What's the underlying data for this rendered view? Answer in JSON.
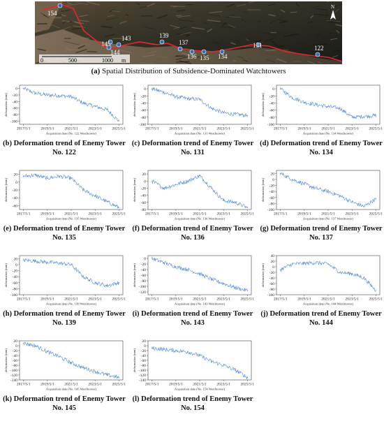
{
  "figure": {
    "main_caption_label": "(a)",
    "main_caption_text": "Spatial Distribution of Subsidence-Dominated Watchtowers"
  },
  "map": {
    "north_label": "N",
    "scale_labels": [
      "0",
      "500",
      "1000",
      "m"
    ],
    "tower_labels": [
      {
        "id": "154",
        "label": "154"
      },
      {
        "id": "145",
        "label": "145"
      },
      {
        "id": "144",
        "label": "144"
      },
      {
        "id": "143",
        "label": "143"
      },
      {
        "id": "139",
        "label": "139"
      },
      {
        "id": "137",
        "label": "137"
      },
      {
        "id": "136",
        "label": "136"
      },
      {
        "id": "135",
        "label": "135"
      },
      {
        "id": "134",
        "label": "134"
      },
      {
        "id": "131",
        "label": "131"
      },
      {
        "id": "122",
        "label": "122"
      }
    ],
    "colors": {
      "boundary": "#e8262a",
      "marker": "#2f6fbf",
      "label": "#ffffff"
    }
  },
  "chart_data": [
    {
      "type": "line",
      "panel": "b",
      "ylabel": "deformation (mm)",
      "xlabel": "Acquisition date (No. 122 Watchtower)",
      "x_ticks": [
        "2017/5/1",
        "2019/5/1",
        "2021/5/1",
        "2023/5/1",
        "2025/5/1"
      ],
      "y_ticks": [
        0,
        -20,
        -40,
        -60,
        -80,
        -100
      ],
      "ylim": [
        -110,
        10
      ],
      "series": [
        {
          "x": [
            "2017/5/1",
            "2018/5/1",
            "2019/5/1",
            "2020/5/1",
            "2021/5/1",
            "2022/5/1",
            "2023/5/1",
            "2024/5/1",
            "2025/5/1"
          ],
          "values": [
            0,
            -15,
            -20,
            -22,
            -25,
            -45,
            -55,
            -65,
            -100
          ]
        }
      ],
      "caption_label": "(b)",
      "caption": "Deformation trend of Enemy Tower No. 122"
    },
    {
      "type": "line",
      "panel": "c",
      "ylabel": "deformation (mm)",
      "xlabel": "Acquisition date (No. 131 Watchtower)",
      "x_ticks": [
        "2017/5/1",
        "2019/5/1",
        "2021/5/1",
        "2023/5/1",
        "2025/5/1"
      ],
      "y_ticks": [
        0,
        -20,
        -40,
        -60,
        -80,
        -100
      ],
      "ylim": [
        -100,
        10
      ],
      "series": [
        {
          "x": [
            "2017/5/1",
            "2018/5/1",
            "2019/5/1",
            "2020/5/1",
            "2021/5/1",
            "2022/5/1",
            "2023/5/1",
            "2024/5/1",
            "2025/5/1"
          ],
          "values": [
            0,
            -10,
            -22,
            -28,
            -30,
            -55,
            -68,
            -72,
            -75
          ]
        }
      ],
      "caption_label": "(c)",
      "caption": "Deformation trend of Enemy Tower No. 131"
    },
    {
      "type": "line",
      "panel": "d",
      "ylabel": "deformation (mm)",
      "xlabel": "Acquisition date (No. 134 Watchtower)",
      "x_ticks": [
        "2017/5/1",
        "2019/5/1",
        "2021/5/1",
        "2023/5/1",
        "2025/5/1"
      ],
      "y_ticks": [
        0,
        -20,
        -40,
        -60,
        -80,
        -100
      ],
      "ylim": [
        -100,
        10
      ],
      "series": [
        {
          "x": [
            "2017/5/1",
            "2018/5/1",
            "2019/5/1",
            "2020/5/1",
            "2021/5/1",
            "2022/5/1",
            "2023/5/1",
            "2024/5/1",
            "2025/5/1"
          ],
          "values": [
            0,
            -25,
            -38,
            -45,
            -50,
            -55,
            -80,
            -78,
            -75
          ]
        }
      ],
      "caption_label": "(d)",
      "caption": "Deformation trend of Enemy Tower No. 134"
    },
    {
      "type": "line",
      "panel": "e",
      "ylabel": "deformation (mm)",
      "xlabel": "Acquisition date (No. 135 Watchtower)",
      "x_ticks": [
        "2017/5/1",
        "2019/5/1",
        "2021/5/1",
        "2023/5/1",
        "2025/5/1"
      ],
      "y_ticks": [
        20,
        0,
        -20,
        -40,
        -60
      ],
      "ylim": [
        -70,
        30
      ],
      "series": [
        {
          "x": [
            "2017/5/1",
            "2018/5/1",
            "2019/5/1",
            "2020/5/1",
            "2021/5/1",
            "2022/5/1",
            "2023/5/1",
            "2024/5/1",
            "2025/5/1"
          ],
          "values": [
            15,
            18,
            10,
            15,
            10,
            -20,
            -35,
            -50,
            -65
          ]
        }
      ],
      "caption_label": "(e)",
      "caption": "Deformation trend of Enemy Tower No. 135"
    },
    {
      "type": "line",
      "panel": "f",
      "ylabel": "deformation (mm)",
      "xlabel": "Acquisition date (No. 136 Watchtower)",
      "x_ticks": [
        "2017/5/1",
        "2019/5/1",
        "2021/5/1",
        "2023/5/1",
        "2025/5/1"
      ],
      "y_ticks": [
        20,
        0,
        -20,
        -40,
        -60,
        -80
      ],
      "ylim": [
        -80,
        30
      ],
      "series": [
        {
          "x": [
            "2017/5/1",
            "2018/5/1",
            "2019/5/1",
            "2020/5/1",
            "2021/5/1",
            "2022/5/1",
            "2023/5/1",
            "2024/5/1",
            "2025/5/1"
          ],
          "values": [
            0,
            -20,
            -10,
            0,
            15,
            -20,
            -55,
            -60,
            -75
          ]
        }
      ],
      "caption_label": "(f)",
      "caption": "Deformation trend of Enemy Tower No. 136"
    },
    {
      "type": "line",
      "panel": "g",
      "ylabel": "deformation (mm)",
      "xlabel": "Acquisition date (No. 137 Watchtower)",
      "x_ticks": [
        "2017/5/1",
        "2019/5/1",
        "2021/5/1",
        "2023/5/1",
        "2025/5/1"
      ],
      "y_ticks": [
        20,
        0,
        -20,
        -40,
        -60,
        -80,
        -100
      ],
      "ylim": [
        -100,
        30
      ],
      "series": [
        {
          "x": [
            "2017/5/1",
            "2018/5/1",
            "2019/5/1",
            "2020/5/1",
            "2021/5/1",
            "2022/5/1",
            "2023/5/1",
            "2024/5/1",
            "2025/5/1"
          ],
          "values": [
            20,
            0,
            -15,
            -30,
            -40,
            -55,
            -75,
            -90,
            -65
          ]
        }
      ],
      "caption_label": "(g)",
      "caption": "Deformation trend of Enemy Tower No. 137"
    },
    {
      "type": "line",
      "panel": "h",
      "ylabel": "deformation (mm)",
      "xlabel": "Acquisition date (No. 139 Watchtower)",
      "x_ticks": [
        "2017/5/1",
        "2019/5/1",
        "2021/5/1",
        "2023/5/1",
        "2025/5/1"
      ],
      "y_ticks": [
        20,
        0,
        -20,
        -40,
        -60,
        -80,
        -100
      ],
      "ylim": [
        -100,
        30
      ],
      "series": [
        {
          "x": [
            "2017/5/1",
            "2018/5/1",
            "2019/5/1",
            "2020/5/1",
            "2021/5/1",
            "2022/5/1",
            "2023/5/1",
            "2024/5/1",
            "2025/5/1"
          ],
          "values": [
            15,
            12,
            8,
            5,
            0,
            -40,
            -60,
            -70,
            -60
          ]
        }
      ],
      "caption_label": "(h)",
      "caption": "Deformation trend of Enemy Tower No. 139"
    },
    {
      "type": "line",
      "panel": "i",
      "ylabel": "deformation (mm)",
      "xlabel": "Acquisition date (No. 143 Watchtower)",
      "x_ticks": [
        "2017/5/1",
        "2019/5/1",
        "2021/5/1",
        "2023/5/1",
        "2025/5/1"
      ],
      "y_ticks": [
        0,
        -20,
        -40,
        -60,
        -80,
        -100,
        -120
      ],
      "ylim": [
        -130,
        10
      ],
      "series": [
        {
          "x": [
            "2017/5/1",
            "2018/5/1",
            "2019/5/1",
            "2020/5/1",
            "2021/5/1",
            "2022/5/1",
            "2023/5/1",
            "2024/5/1",
            "2025/5/1"
          ],
          "values": [
            0,
            -15,
            -30,
            -40,
            -55,
            -75,
            -90,
            -105,
            -115
          ]
        }
      ],
      "caption_label": "(i)",
      "caption": "Deformation trend of Enemy Tower No. 143"
    },
    {
      "type": "line",
      "panel": "j",
      "ylabel": "deformation (mm)",
      "xlabel": "Acquisition date (No. 144 Watchtower)",
      "x_ticks": [
        "2017/5/1",
        "2019/5/1",
        "2021/5/1",
        "2023/5/1",
        "2025/5/1"
      ],
      "y_ticks": [
        40,
        20,
        0,
        -20,
        -40,
        -60,
        -80,
        -100
      ],
      "ylim": [
        -100,
        40
      ],
      "series": [
        {
          "x": [
            "2017/5/1",
            "2018/5/1",
            "2019/5/1",
            "2020/5/1",
            "2021/5/1",
            "2022/5/1",
            "2023/5/1",
            "2024/5/1",
            "2025/5/1"
          ],
          "values": [
            -10,
            10,
            12,
            15,
            10,
            -20,
            -25,
            -40,
            -85
          ]
        }
      ],
      "caption_label": "(j)",
      "caption": "Deformation trend of Enemy Tower No. 144"
    },
    {
      "type": "line",
      "panel": "k",
      "ylabel": "deformation (mm)",
      "xlabel": "Acquisition date (No. 145 Watchtower)",
      "x_ticks": [
        "2017/5/1",
        "2019/5/1",
        "2021/5/1",
        "2023/5/1",
        "2025/5/1"
      ],
      "y_ticks": [
        20,
        0,
        -20,
        -40,
        -60,
        -80,
        -100,
        -120,
        -140
      ],
      "ylim": [
        -140,
        20
      ],
      "series": [
        {
          "x": [
            "2017/5/1",
            "2018/5/1",
            "2019/5/1",
            "2020/5/1",
            "2021/5/1",
            "2022/5/1",
            "2023/5/1",
            "2024/5/1",
            "2025/5/1"
          ],
          "values": [
            10,
            0,
            -25,
            -45,
            -70,
            -90,
            -105,
            -120,
            -130
          ]
        }
      ],
      "caption_label": "(k)",
      "caption": "Deformation trend of Enemy Tower No. 145"
    },
    {
      "type": "line",
      "panel": "l",
      "ylabel": "deformation (mm)",
      "xlabel": "Acquisition date (No. 154 Watchtower)",
      "x_ticks": [
        "2017/5/1",
        "2019/5/1",
        "2021/5/1",
        "2023/5/1",
        "2025/5/1"
      ],
      "y_ticks": [
        20,
        0,
        -20,
        -40,
        -60,
        -80,
        -100,
        -120,
        -140
      ],
      "ylim": [
        -140,
        20
      ],
      "series": [
        {
          "x": [
            "2017/5/1",
            "2018/5/1",
            "2019/5/1",
            "2020/5/1",
            "2021/5/1",
            "2022/5/1",
            "2023/5/1",
            "2024/5/1",
            "2025/5/1"
          ],
          "values": [
            -10,
            -15,
            -20,
            -25,
            -40,
            -65,
            -80,
            -100,
            -130
          ]
        }
      ],
      "caption_label": "(l)",
      "caption": "Deformation trend of Enemy Tower No. 154"
    }
  ]
}
